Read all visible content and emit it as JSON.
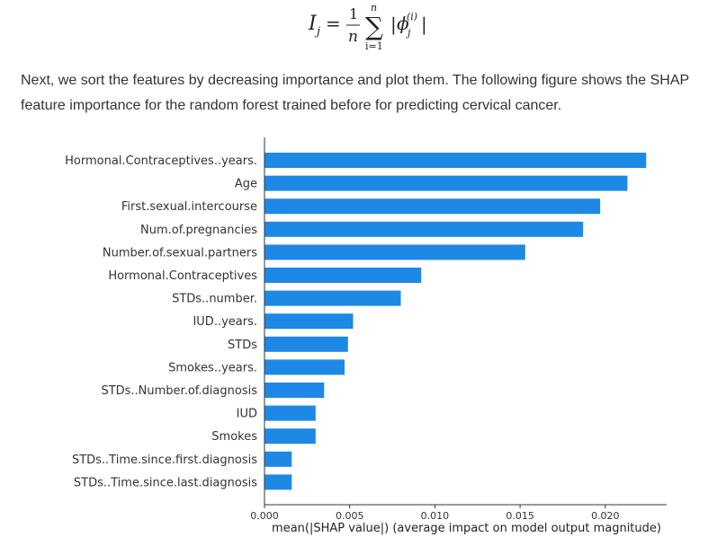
{
  "formula": {
    "lhs": "I",
    "lhs_sub": "j",
    "equals": "=",
    "frac_num": "1",
    "frac_den": "n",
    "sum_top": "n",
    "sum_bottom": "i=1",
    "term_bar_left": "|",
    "term_phi": "ϕ",
    "term_sup": "(i)",
    "term_sub": "j",
    "term_bar_right": "|"
  },
  "paragraph": {
    "text": "Next, we sort the features by decreasing importance and plot them. The following figure shows the SHAP feature importance for the random forest trained before for predicting cervical cancer."
  },
  "colors": {
    "bar": "#1E88E5",
    "axis": "#333333"
  },
  "chart_data": {
    "type": "bar",
    "orientation": "horizontal",
    "title": "",
    "xlabel": "mean(|SHAP value|) (average impact on model output magnitude)",
    "ylabel": "",
    "xlim": [
      0,
      0.0236
    ],
    "xticks": [
      0.0,
      0.005,
      0.01,
      0.015,
      0.02
    ],
    "xtick_labels": [
      "0.000",
      "0.005",
      "0.010",
      "0.015",
      "0.020"
    ],
    "categories": [
      "Hormonal.Contraceptives..years.",
      "Age",
      "First.sexual.intercourse",
      "Num.of.pregnancies",
      "Number.of.sexual.partners",
      "Hormonal.Contraceptives",
      "STDs..number.",
      "IUD..years.",
      "STDs",
      "Smokes..years.",
      "STDs..Number.of.diagnosis",
      "IUD",
      "Smokes",
      "STDs..Time.since.first.diagnosis",
      "STDs..Time.since.last.diagnosis"
    ],
    "values": [
      0.0224,
      0.0213,
      0.0197,
      0.0187,
      0.0153,
      0.0092,
      0.008,
      0.0052,
      0.0049,
      0.0047,
      0.0035,
      0.003,
      0.003,
      0.0016,
      0.0016
    ],
    "grid": false,
    "legend": "none"
  }
}
